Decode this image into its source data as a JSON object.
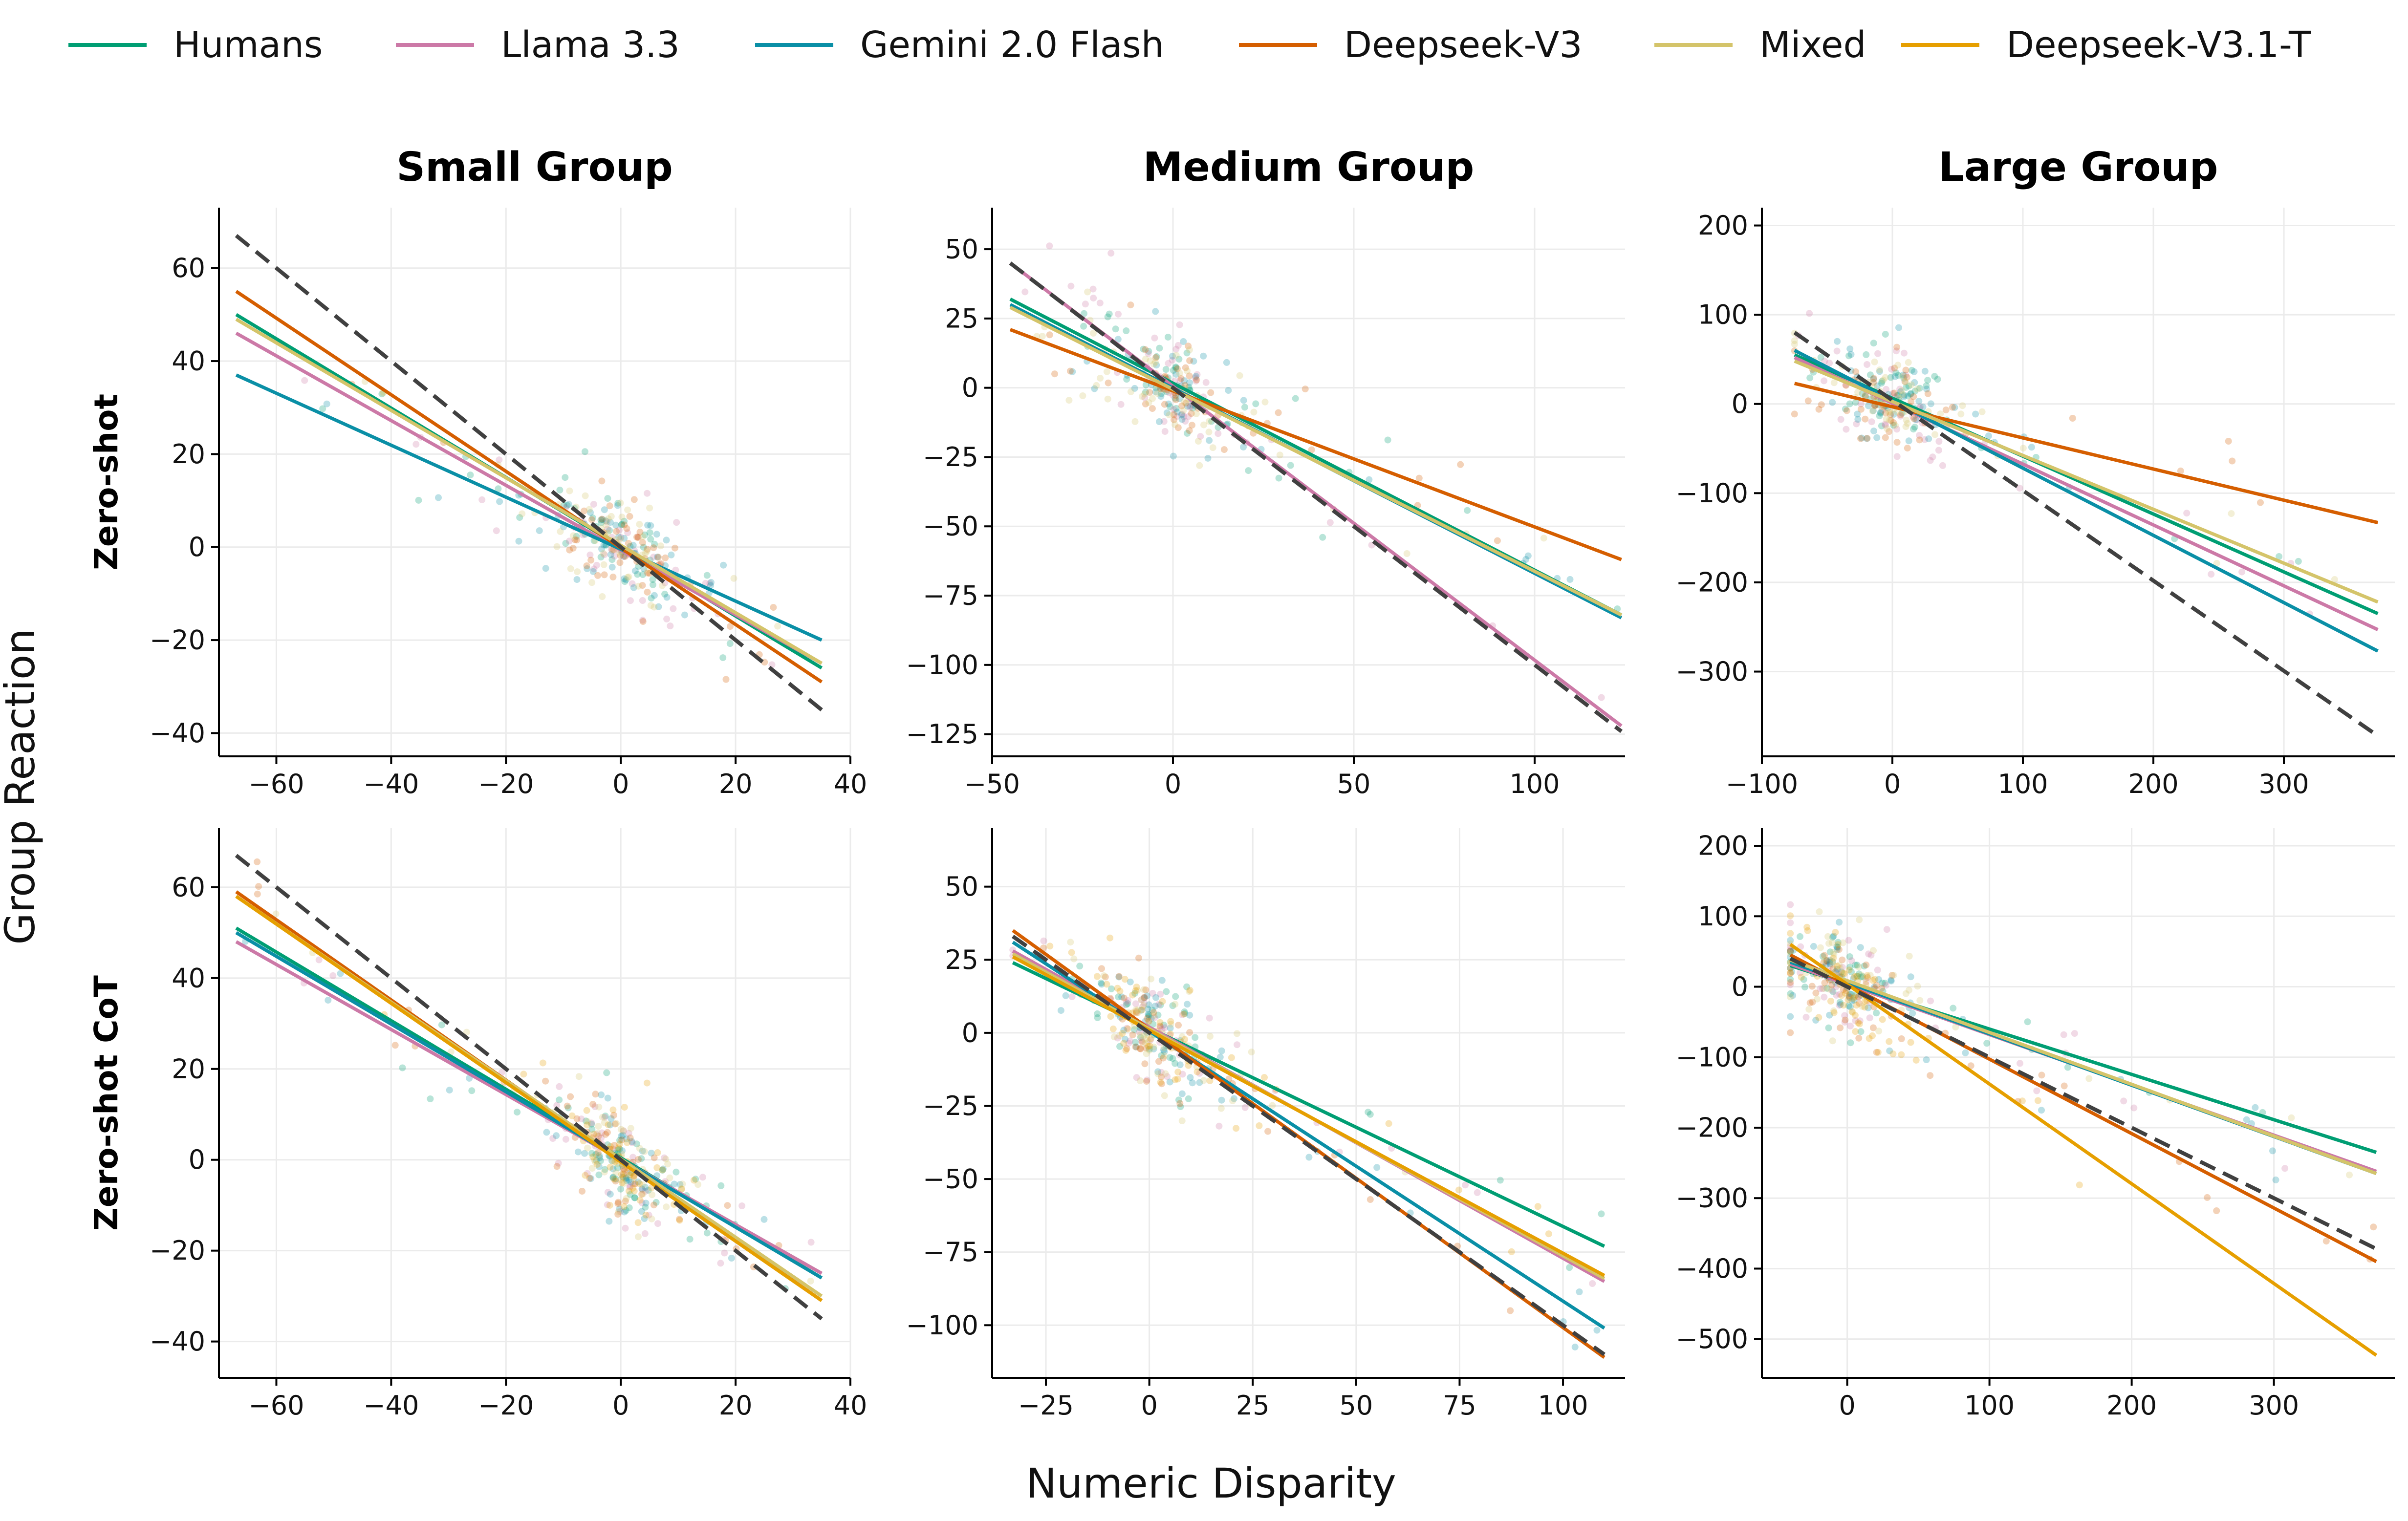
{
  "figure": {
    "xlabel": "Numeric Disparity",
    "ylabel": "Group Reaction",
    "row_labels": [
      "Zero-shot",
      "Zero-shot CoT"
    ],
    "col_titles": [
      "Small Group",
      "Medium Group",
      "Large Group"
    ],
    "legend": [
      {
        "name": "Humans",
        "color": "#009E73"
      },
      {
        "name": "Llama 3.3",
        "color": "#CC79A7"
      },
      {
        "name": "Gemini 2.0 Flash",
        "color": "#0A8FA6"
      },
      {
        "name": "Deepseek-V3",
        "color": "#D55E00"
      },
      {
        "name": "Mixed",
        "color": "#D4C46A"
      },
      {
        "name": "Deepseek-V3.1-T",
        "color": "#E69F00"
      }
    ],
    "reference_line_color": "#404040"
  },
  "chart_data": [
    {
      "type": "scatter",
      "row": "Zero-shot",
      "title": "Small Group",
      "xlim": [
        -70,
        40
      ],
      "ylim": [
        -45,
        73
      ],
      "xticks": [
        -60,
        -40,
        -20,
        0,
        20,
        40
      ],
      "yticks": [
        -40,
        -20,
        0,
        20,
        40,
        60
      ],
      "xlabel": "Numeric Disparity",
      "ylabel": "Group Reaction",
      "reference": {
        "x": [
          -67,
          35
        ],
        "y": [
          67,
          -35
        ]
      },
      "series": [
        {
          "name": "Humans",
          "x": [
            -67,
            35
          ],
          "y": [
            50,
            -26
          ]
        },
        {
          "name": "Llama 3.3",
          "x": [
            -67,
            35
          ],
          "y": [
            46,
            -25
          ]
        },
        {
          "name": "Gemini 2.0 Flash",
          "x": [
            -67,
            35
          ],
          "y": [
            37,
            -20
          ]
        },
        {
          "name": "Deepseek-V3",
          "x": [
            -67,
            35
          ],
          "y": [
            55,
            -29
          ]
        },
        {
          "name": "Mixed",
          "x": [
            -67,
            35
          ],
          "y": [
            49,
            -25
          ]
        }
      ]
    },
    {
      "type": "scatter",
      "row": "Zero-shot",
      "title": "Medium Group",
      "xlim": [
        -50,
        125
      ],
      "ylim": [
        -133,
        65
      ],
      "xticks": [
        -50,
        0,
        50,
        100
      ],
      "yticks": [
        -125,
        -100,
        -75,
        -50,
        -25,
        0,
        25,
        50
      ],
      "xlabel": "Numeric Disparity",
      "ylabel": "Group Reaction",
      "reference": {
        "x": [
          -45,
          124
        ],
        "y": [
          45,
          -124
        ]
      },
      "series": [
        {
          "name": "Humans",
          "x": [
            -45,
            124
          ],
          "y": [
            32,
            -82
          ]
        },
        {
          "name": "Llama 3.3",
          "x": [
            -45,
            124
          ],
          "y": [
            45,
            -122
          ]
        },
        {
          "name": "Gemini 2.0 Flash",
          "x": [
            -45,
            124
          ],
          "y": [
            30,
            -83
          ]
        },
        {
          "name": "Deepseek-V3",
          "x": [
            -45,
            124
          ],
          "y": [
            21,
            -62
          ]
        },
        {
          "name": "Mixed",
          "x": [
            -45,
            124
          ],
          "y": [
            29,
            -82
          ]
        }
      ]
    },
    {
      "type": "scatter",
      "row": "Zero-shot",
      "title": "Large Group",
      "xlim": [
        -100,
        385
      ],
      "ylim": [
        -395,
        220
      ],
      "xticks": [
        -100,
        0,
        100,
        200,
        300
      ],
      "yticks": [
        -300,
        -200,
        -100,
        0,
        100,
        200
      ],
      "xlabel": "Numeric Disparity",
      "ylabel": "Group Reaction",
      "reference": {
        "x": [
          -75,
          372
        ],
        "y": [
          80,
          -372
        ]
      },
      "series": [
        {
          "name": "Humans",
          "x": [
            -75,
            372
          ],
          "y": [
            55,
            -235
          ]
        },
        {
          "name": "Llama 3.3",
          "x": [
            -75,
            372
          ],
          "y": [
            52,
            -253
          ]
        },
        {
          "name": "Gemini 2.0 Flash",
          "x": [
            -75,
            372
          ],
          "y": [
            60,
            -277
          ]
        },
        {
          "name": "Deepseek-V3",
          "x": [
            -75,
            372
          ],
          "y": [
            23,
            -133
          ]
        },
        {
          "name": "Mixed",
          "x": [
            -75,
            372
          ],
          "y": [
            48,
            -222
          ]
        }
      ]
    },
    {
      "type": "scatter",
      "row": "Zero-shot CoT",
      "title": "Small Group",
      "xlim": [
        -70,
        40
      ],
      "ylim": [
        -48,
        73
      ],
      "xticks": [
        -60,
        -40,
        -20,
        0,
        20,
        40
      ],
      "yticks": [
        -40,
        -20,
        0,
        20,
        40,
        60
      ],
      "xlabel": "Numeric Disparity",
      "ylabel": "Group Reaction",
      "reference": {
        "x": [
          -67,
          35
        ],
        "y": [
          67,
          -35
        ]
      },
      "series": [
        {
          "name": "Humans",
          "x": [
            -67,
            35
          ],
          "y": [
            51,
            -26
          ]
        },
        {
          "name": "Llama 3.3",
          "x": [
            -67,
            35
          ],
          "y": [
            48,
            -25
          ]
        },
        {
          "name": "Gemini 2.0 Flash",
          "x": [
            -67,
            35
          ],
          "y": [
            50,
            -26
          ]
        },
        {
          "name": "Deepseek-V3",
          "x": [
            -67,
            35
          ],
          "y": [
            59,
            -31
          ]
        },
        {
          "name": "Mixed",
          "x": [
            -67,
            35
          ],
          "y": [
            58,
            -30
          ]
        },
        {
          "name": "Deepseek-V3.1-T",
          "x": [
            -67,
            35
          ],
          "y": [
            58,
            -31
          ]
        }
      ]
    },
    {
      "type": "scatter",
      "row": "Zero-shot CoT",
      "title": "Medium Group",
      "xlim": [
        -38,
        115
      ],
      "ylim": [
        -118,
        70
      ],
      "xticks": [
        -25,
        0,
        25,
        50,
        75,
        100
      ],
      "yticks": [
        -100,
        -75,
        -50,
        -25,
        0,
        25,
        50
      ],
      "xlabel": "Numeric Disparity",
      "ylabel": "Group Reaction",
      "reference": {
        "x": [
          -33,
          110
        ],
        "y": [
          33,
          -110
        ]
      },
      "series": [
        {
          "name": "Humans",
          "x": [
            -33,
            110
          ],
          "y": [
            24,
            -73
          ]
        },
        {
          "name": "Llama 3.3",
          "x": [
            -33,
            110
          ],
          "y": [
            28,
            -85
          ]
        },
        {
          "name": "Gemini 2.0 Flash",
          "x": [
            -33,
            110
          ],
          "y": [
            31,
            -101
          ]
        },
        {
          "name": "Deepseek-V3",
          "x": [
            -33,
            110
          ],
          "y": [
            35,
            -111
          ]
        },
        {
          "name": "Mixed",
          "x": [
            -33,
            110
          ],
          "y": [
            27,
            -84
          ]
        },
        {
          "name": "Deepseek-V3.1-T",
          "x": [
            -33,
            110
          ],
          "y": [
            26,
            -83
          ]
        }
      ]
    },
    {
      "type": "scatter",
      "row": "Zero-shot CoT",
      "title": "Large Group",
      "xlim": [
        -60,
        385
      ],
      "ylim": [
        -555,
        225
      ],
      "xticks": [
        0,
        100,
        200,
        300
      ],
      "yticks": [
        -500,
        -400,
        -300,
        -200,
        -100,
        0,
        100,
        200
      ],
      "xlabel": "Numeric Disparity",
      "ylabel": "Group Reaction",
      "reference": {
        "x": [
          -40,
          372
        ],
        "y": [
          40,
          -372
        ]
      },
      "series": [
        {
          "name": "Humans",
          "x": [
            -40,
            372
          ],
          "y": [
            30,
            -235
          ]
        },
        {
          "name": "Llama 3.3",
          "x": [
            -40,
            372
          ],
          "y": [
            32,
            -262
          ]
        },
        {
          "name": "Gemini 2.0 Flash",
          "x": [
            -40,
            372
          ],
          "y": [
            35,
            -265
          ]
        },
        {
          "name": "Deepseek-V3",
          "x": [
            -40,
            372
          ],
          "y": [
            45,
            -390
          ]
        },
        {
          "name": "Mixed",
          "x": [
            -40,
            372
          ],
          "y": [
            38,
            -265
          ]
        },
        {
          "name": "Deepseek-V3.1-T",
          "x": [
            -40,
            372
          ],
          "y": [
            60,
            -523
          ]
        }
      ]
    }
  ]
}
